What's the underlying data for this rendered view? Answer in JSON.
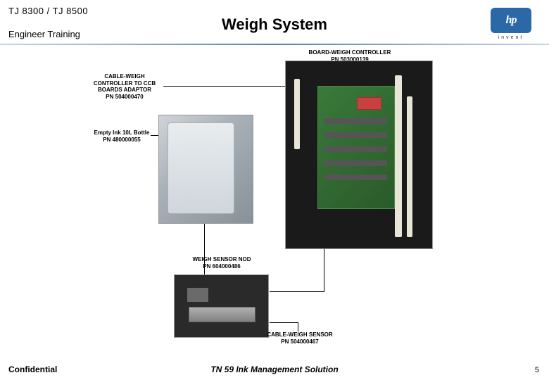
{
  "header": {
    "product": "TJ 8300 / TJ 8500",
    "training": "Engineer Training",
    "title": "Weigh System",
    "logo_text": "hp",
    "logo_sub": "invent"
  },
  "callouts": {
    "board_controller": "BOARD-WEIGH CONTROLLER\nPN 503000139",
    "cable_adaptor": "CABLE-WEIGH\nCONTROLLER TO CCB\nBOARDS ADAPTOR\nPN 504000470",
    "bottle": "Empty Ink 10L Bottle\nPN 480000055",
    "weigh_sensor_nod": "WEIGH SENSOR NOD\nPN 604000486",
    "cable_weigh_sensor": "CABLE-WEIGH SENSOR\nPN 504000467"
  },
  "footer": {
    "confidential": "Confidential",
    "title": "TN 59 Ink Management Solution",
    "page": "5"
  },
  "colors": {
    "underline_mid": "#5b7fb5",
    "logo_bg": "#2b68a8",
    "pcb": "#3a7a3a"
  }
}
